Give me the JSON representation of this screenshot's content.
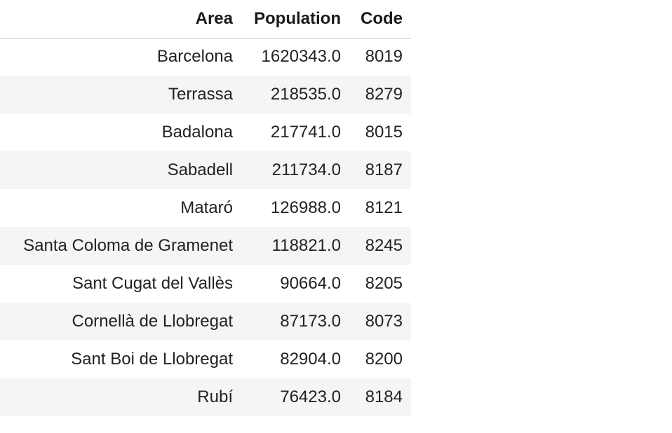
{
  "table": {
    "columns": [
      "Area",
      "Population",
      "Code"
    ],
    "rows": [
      {
        "area": "Barcelona",
        "population": "1620343.0",
        "code": "8019"
      },
      {
        "area": "Terrassa",
        "population": "218535.0",
        "code": "8279"
      },
      {
        "area": "Badalona",
        "population": "217741.0",
        "code": "8015"
      },
      {
        "area": "Sabadell",
        "population": "211734.0",
        "code": "8187"
      },
      {
        "area": "Mataró",
        "population": "126988.0",
        "code": "8121"
      },
      {
        "area": "Santa Coloma de Gramenet",
        "population": "118821.0",
        "code": "8245"
      },
      {
        "area": "Sant Cugat del Vallès",
        "population": "90664.0",
        "code": "8205"
      },
      {
        "area": "Cornellà de Llobregat",
        "population": "87173.0",
        "code": "8073"
      },
      {
        "area": "Sant Boi de Llobregat",
        "population": "82904.0",
        "code": "8200"
      },
      {
        "area": "Rubí",
        "population": "76423.0",
        "code": "8184"
      }
    ]
  },
  "colors": {
    "stripe": "#f5f5f5",
    "header_border": "#c8c8c8"
  }
}
